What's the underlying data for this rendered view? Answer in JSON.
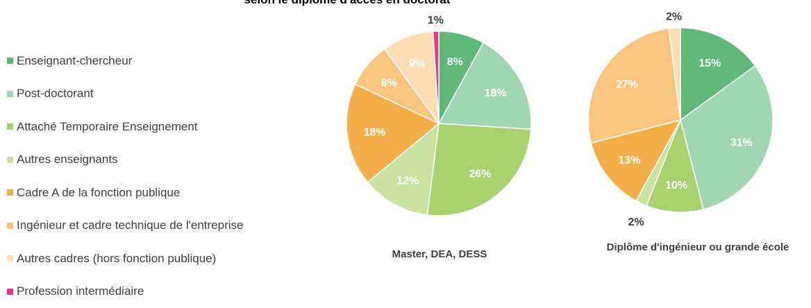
{
  "chart_data": {
    "type": "pie",
    "title": "selon le diplôme d'accès en doctorat",
    "legend_position": "left",
    "categories": [
      "Enseignant-chercheur",
      "Post-doctorant",
      "Attaché Temporaire Enseignement",
      "Autres enseignants",
      "Cadre A de la fonction publique",
      "Ingénieur et cadre technique de l'entreprise",
      "Autres cadres (hors fonction publique)",
      "Profession intermédiaire"
    ],
    "colors": [
      "#5fb87a",
      "#a0d6b1",
      "#a8d170",
      "#c9e2a2",
      "#f4ae4a",
      "#f7c57f",
      "#fbdcb4",
      "#e8387f"
    ],
    "series": [
      {
        "name": "Master, DEA, DESS",
        "values": [
          8,
          18,
          26,
          12,
          18,
          8,
          9,
          1
        ],
        "labels": [
          "8%",
          "18%",
          "26%",
          "12%",
          "18%",
          "8%",
          "9%",
          "1%"
        ]
      },
      {
        "name": "Diplôme d'ingénieur ou grande école",
        "values": [
          15,
          31,
          10,
          2,
          13,
          27,
          2,
          0
        ],
        "labels": [
          "15%",
          "31%",
          "10%",
          "2%",
          "13%",
          "27%",
          "2%",
          ""
        ]
      }
    ]
  }
}
